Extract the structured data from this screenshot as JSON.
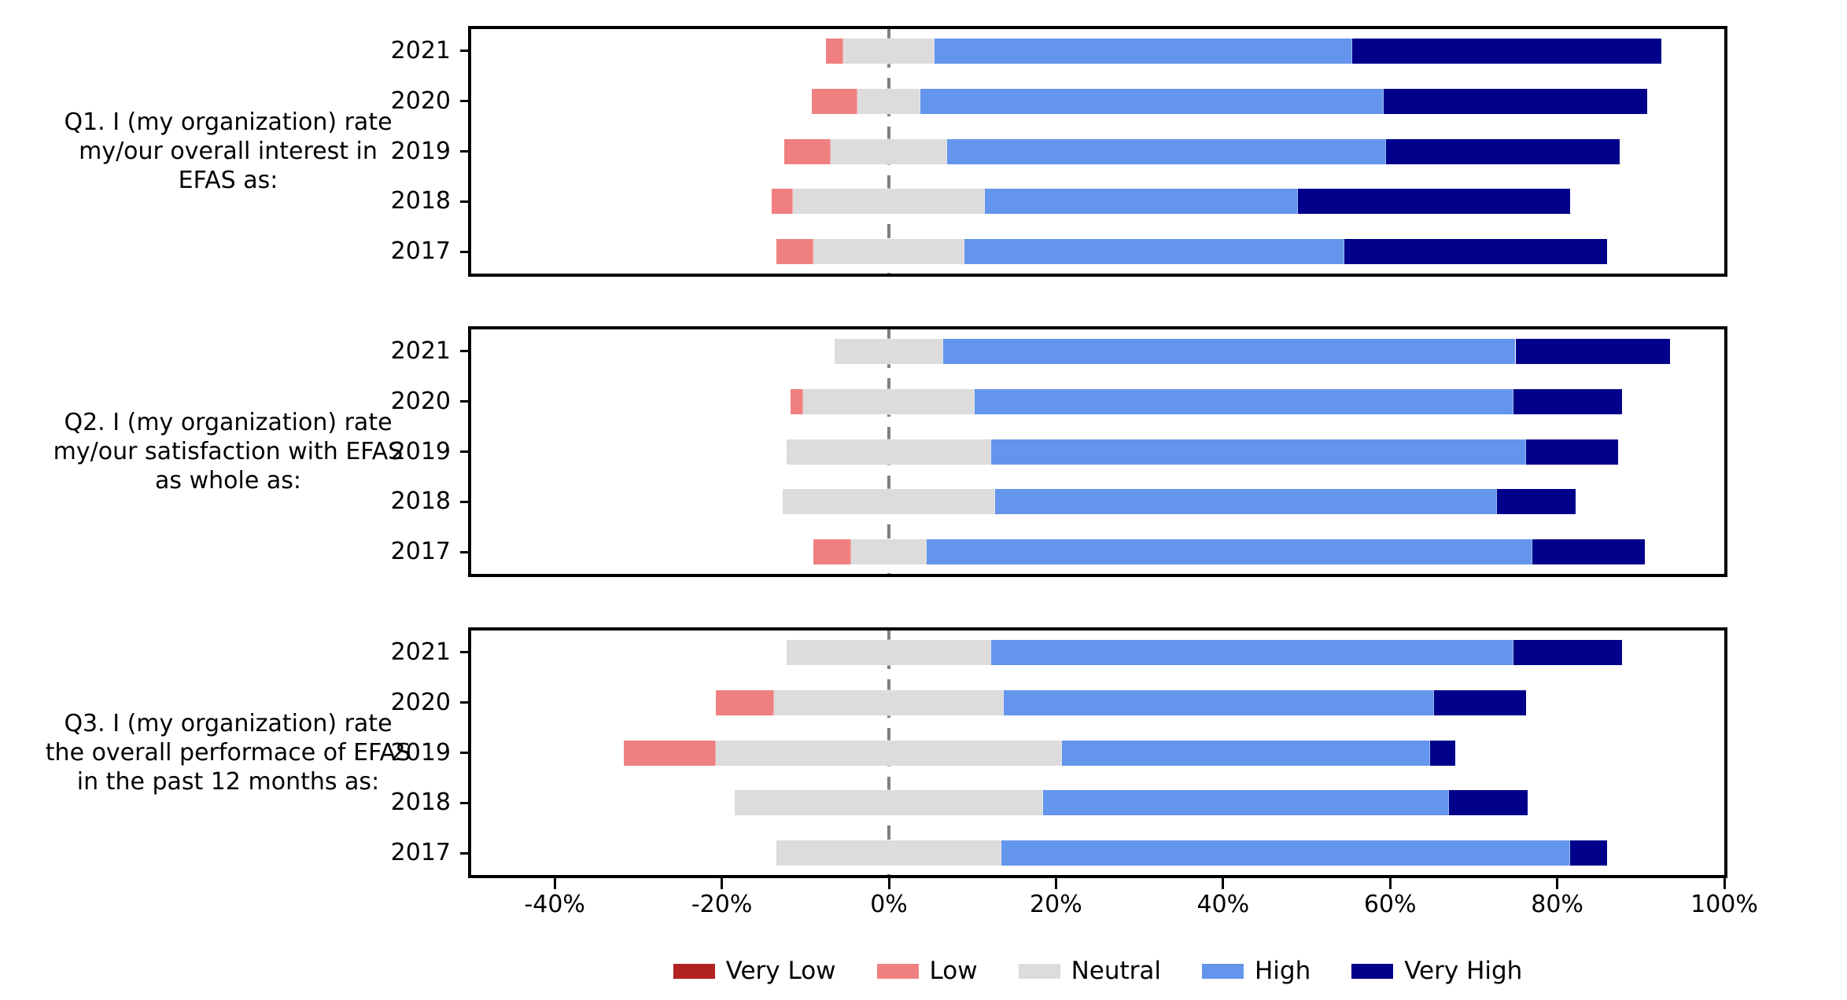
{
  "chart_data": {
    "type": "bar",
    "variant": "diverging-stacked-horizontal-likert",
    "x_domain": [
      -50,
      100
    ],
    "x_ticks": [
      {
        "value": -40,
        "label": "-40%"
      },
      {
        "value": -20,
        "label": "-20%"
      },
      {
        "value": 0,
        "label": "0%"
      },
      {
        "value": 20,
        "label": "20%"
      },
      {
        "value": 40,
        "label": "40%"
      },
      {
        "value": 60,
        "label": "60%"
      },
      {
        "value": 80,
        "label": "80%"
      },
      {
        "value": 100,
        "label": "100%"
      }
    ],
    "zero_line": {
      "value": 0,
      "style": "dashed",
      "color": "#7f7f7f"
    },
    "grid": false,
    "legend_position": "bottom-center",
    "legend": [
      {
        "key": "very_low",
        "label": "Very Low",
        "color": "#B22222"
      },
      {
        "key": "low",
        "label": "Low",
        "color": "#F08080"
      },
      {
        "key": "neutral",
        "label": "Neutral",
        "color": "#DCDCDC"
      },
      {
        "key": "high",
        "label": "High",
        "color": "#6495ED"
      },
      {
        "key": "very_high",
        "label": "Very High",
        "color": "#00008B"
      }
    ],
    "segment_order": [
      "very_low",
      "low",
      "neutral",
      "high",
      "very_high"
    ],
    "neutral_centered_on_zero": true,
    "panels": [
      {
        "title": "Q1. I (my organization) rate\nmy/our overall interest in\nEFAS as:",
        "categories": [
          "2021",
          "2020",
          "2019",
          "2018",
          "2017"
        ],
        "series": {
          "very_low": [
            0,
            0,
            0,
            0,
            0
          ],
          "low": [
            2,
            5.5,
            5.5,
            2.5,
            4.5
          ],
          "neutral": [
            11,
            7.5,
            14,
            23,
            18
          ],
          "high": [
            50,
            55.5,
            52.5,
            37.5,
            45.5
          ],
          "very_high": [
            37,
            31.5,
            28,
            32.5,
            31.5
          ]
        }
      },
      {
        "title": "Q2. I (my organization) rate\nmy/our satisfaction with EFAS\nas whole as:",
        "categories": [
          "2021",
          "2020",
          "2019",
          "2018",
          "2017"
        ],
        "series": {
          "very_low": [
            0,
            0,
            0,
            0,
            0
          ],
          "low": [
            0,
            1.5,
            0,
            0,
            4.5
          ],
          "neutral": [
            13,
            20.5,
            24.5,
            25.5,
            9
          ],
          "high": [
            68.5,
            64.5,
            64,
            60,
            72.5
          ],
          "very_high": [
            18.5,
            13,
            11,
            9.5,
            13.5
          ]
        }
      },
      {
        "title": "Q3. I (my organization) rate\nthe overall performace of EFAS\nin the past 12 months as:",
        "categories": [
          "2021",
          "2020",
          "2019",
          "2018",
          "2017"
        ],
        "series": {
          "very_low": [
            0,
            0,
            0,
            0,
            0
          ],
          "low": [
            0,
            7,
            11,
            0,
            0
          ],
          "neutral": [
            24.5,
            27.5,
            41.5,
            37,
            27
          ],
          "high": [
            62.5,
            51.5,
            44,
            48.5,
            68
          ],
          "very_high": [
            13,
            11,
            3,
            9.5,
            4.5
          ]
        }
      }
    ]
  }
}
